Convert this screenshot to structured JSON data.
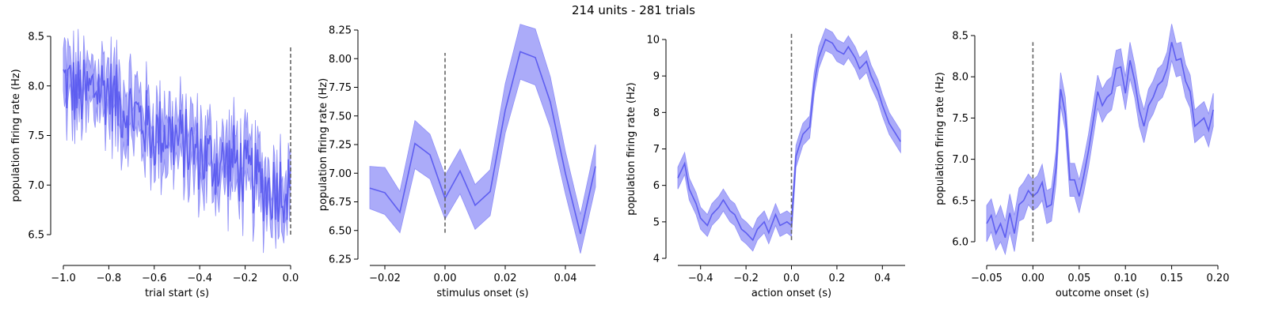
{
  "figure": {
    "suptitle": "214 units - 281 trials"
  },
  "colors": {
    "line": "#5555ee",
    "band": "#8f8ff7",
    "marker": "#666666",
    "axis": "#000000"
  },
  "chart_data": [
    {
      "type": "line",
      "xlabel": "trial start (s)",
      "ylabel": "population firing rate (Hz)",
      "xlim": [
        -1.0,
        0.0
      ],
      "ylim": [
        6.5,
        8.5
      ],
      "xticks": [
        -1.0,
        -0.8,
        -0.6,
        -0.4,
        -0.2,
        0.0
      ],
      "xtick_labels": [
        "−1.0",
        "−0.8",
        "−0.6",
        "−0.4",
        "−0.2",
        "0.0"
      ],
      "yticks": [
        6.5,
        7.0,
        7.5,
        8.0,
        8.5
      ],
      "ytick_labels": [
        "6.5",
        "7.0",
        "7.5",
        "8.0",
        "8.5"
      ],
      "event_line": {
        "x": 0.0,
        "y": [
          6.5,
          8.4
        ]
      },
      "noisy": true,
      "x": [
        -1.0,
        -0.95,
        -0.9,
        -0.85,
        -0.8,
        -0.75,
        -0.7,
        -0.65,
        -0.6,
        -0.55,
        -0.5,
        -0.45,
        -0.4,
        -0.35,
        -0.3,
        -0.25,
        -0.2,
        -0.15,
        -0.1,
        -0.05,
        0.0
      ],
      "y": [
        8.05,
        7.95,
        7.9,
        8.0,
        7.95,
        7.8,
        7.75,
        7.65,
        7.5,
        7.55,
        7.45,
        7.4,
        7.3,
        7.25,
        7.2,
        7.25,
        7.1,
        7.05,
        6.95,
        7.0,
        6.95
      ],
      "ci_half_width": [
        0.25,
        0.25,
        0.25,
        0.25,
        0.25,
        0.25,
        0.25,
        0.25,
        0.25,
        0.25,
        0.25,
        0.25,
        0.25,
        0.25,
        0.25,
        0.25,
        0.25,
        0.25,
        0.25,
        0.25,
        0.25
      ]
    },
    {
      "type": "line",
      "xlabel": "stimulus onset (s)",
      "ylabel": "population firing rate (Hz)",
      "xlim": [
        -0.025,
        0.05
      ],
      "ylim": [
        6.25,
        8.25
      ],
      "xticks": [
        -0.02,
        0.0,
        0.02,
        0.04
      ],
      "xtick_labels": [
        "−0.02",
        "0.00",
        "0.02",
        "0.04"
      ],
      "yticks": [
        6.25,
        6.5,
        6.75,
        7.0,
        7.25,
        7.5,
        7.75,
        8.0,
        8.25
      ],
      "ytick_labels": [
        "6.25",
        "6.50",
        "6.75",
        "7.00",
        "7.25",
        "7.50",
        "7.75",
        "8.00",
        "8.25"
      ],
      "event_line": {
        "x": 0.0,
        "y": [
          6.48,
          8.05
        ]
      },
      "noisy": false,
      "x": [
        -0.025,
        -0.02,
        -0.015,
        -0.01,
        -0.005,
        0.0,
        0.005,
        0.01,
        0.015,
        0.02,
        0.025,
        0.03,
        0.035,
        0.04,
        0.045,
        0.05
      ],
      "y": [
        6.87,
        6.83,
        6.66,
        7.26,
        7.16,
        6.78,
        7.02,
        6.72,
        6.84,
        7.55,
        8.06,
        8.01,
        7.62,
        7.0,
        6.47,
        7.06
      ],
      "lower": [
        6.69,
        6.64,
        6.48,
        7.04,
        6.95,
        6.6,
        6.82,
        6.51,
        6.63,
        7.35,
        7.82,
        7.77,
        7.4,
        6.82,
        6.3,
        6.88
      ],
      "upper": [
        7.06,
        7.05,
        6.84,
        7.46,
        7.34,
        6.98,
        7.21,
        6.9,
        7.03,
        7.78,
        8.3,
        8.26,
        7.84,
        7.19,
        6.64,
        7.25
      ]
    },
    {
      "type": "line",
      "xlabel": "action onset (s)",
      "ylabel": "population firing rate (Hz)",
      "xlim": [
        -0.5,
        0.5
      ],
      "ylim": [
        4,
        10
      ],
      "xticks": [
        -0.4,
        -0.2,
        0.0,
        0.2,
        0.4
      ],
      "xtick_labels": [
        "−0.4",
        "−0.2",
        "0.0",
        "0.2",
        "0.4"
      ],
      "yticks": [
        4,
        5,
        6,
        7,
        8,
        9,
        10
      ],
      "ytick_labels": [
        "4",
        "5",
        "6",
        "7",
        "8",
        "9",
        "10"
      ],
      "event_line": {
        "x": 0.0,
        "y": [
          4.5,
          10.2
        ]
      },
      "noisy": false,
      "x": [
        -0.5,
        -0.47,
        -0.45,
        -0.42,
        -0.4,
        -0.37,
        -0.35,
        -0.32,
        -0.3,
        -0.27,
        -0.25,
        -0.22,
        -0.2,
        -0.17,
        -0.15,
        -0.12,
        -0.1,
        -0.07,
        -0.05,
        -0.02,
        0.0,
        0.02,
        0.05,
        0.08,
        0.1,
        0.12,
        0.15,
        0.18,
        0.2,
        0.23,
        0.25,
        0.28,
        0.3,
        0.33,
        0.35,
        0.38,
        0.4,
        0.43,
        0.45,
        0.48
      ],
      "y": [
        6.2,
        6.6,
        5.9,
        5.5,
        5.1,
        4.9,
        5.2,
        5.4,
        5.6,
        5.3,
        5.2,
        4.8,
        4.7,
        4.5,
        4.8,
        5.0,
        4.7,
        5.2,
        4.9,
        5.0,
        4.9,
        6.8,
        7.4,
        7.6,
        8.8,
        9.5,
        10.0,
        9.9,
        9.7,
        9.6,
        9.8,
        9.5,
        9.2,
        9.4,
        9.0,
        8.6,
        8.2,
        7.7,
        7.5,
        7.2
      ],
      "lower": [
        5.9,
        6.3,
        5.6,
        5.2,
        4.8,
        4.6,
        4.9,
        5.1,
        5.3,
        5.0,
        4.9,
        4.5,
        4.4,
        4.2,
        4.5,
        4.7,
        4.4,
        4.9,
        4.6,
        4.7,
        4.6,
        6.5,
        7.1,
        7.3,
        8.5,
        9.2,
        9.7,
        9.6,
        9.4,
        9.3,
        9.5,
        9.2,
        8.9,
        9.1,
        8.7,
        8.3,
        7.9,
        7.4,
        7.2,
        6.9
      ],
      "upper": [
        6.5,
        6.9,
        6.2,
        5.8,
        5.4,
        5.2,
        5.5,
        5.7,
        5.9,
        5.6,
        5.5,
        5.1,
        5.0,
        4.8,
        5.1,
        5.3,
        5.0,
        5.5,
        5.2,
        5.3,
        5.2,
        7.1,
        7.7,
        7.9,
        9.1,
        9.8,
        10.3,
        10.2,
        10.0,
        9.9,
        10.1,
        9.8,
        9.5,
        9.7,
        9.3,
        8.9,
        8.5,
        8.0,
        7.8,
        7.5
      ]
    },
    {
      "type": "line",
      "xlabel": "outcome onset (s)",
      "ylabel": "population firing rate (Hz)",
      "xlim": [
        -0.05,
        0.2
      ],
      "ylim": [
        6.0,
        8.5
      ],
      "xticks": [
        -0.05,
        0.0,
        0.05,
        0.1,
        0.15,
        0.2
      ],
      "xtick_labels": [
        "−0.05",
        "0.00",
        "0.05",
        "0.10",
        "0.15",
        "0.20"
      ],
      "yticks": [
        6.0,
        6.5,
        7.0,
        7.5,
        8.0,
        8.5
      ],
      "ytick_labels": [
        "6.0",
        "6.5",
        "7.0",
        "7.5",
        "8.0",
        "8.5"
      ],
      "event_line": {
        "x": 0.0,
        "y": [
          6.0,
          8.42
        ]
      },
      "noisy": false,
      "x": [
        -0.05,
        -0.045,
        -0.04,
        -0.035,
        -0.03,
        -0.025,
        -0.02,
        -0.015,
        -0.01,
        -0.005,
        0.0,
        0.005,
        0.01,
        0.015,
        0.02,
        0.025,
        0.03,
        0.035,
        0.04,
        0.045,
        0.05,
        0.055,
        0.06,
        0.065,
        0.07,
        0.075,
        0.08,
        0.085,
        0.09,
        0.095,
        0.1,
        0.105,
        0.11,
        0.115,
        0.12,
        0.125,
        0.13,
        0.135,
        0.14,
        0.145,
        0.15,
        0.155,
        0.16,
        0.165,
        0.17,
        0.175,
        0.18,
        0.185,
        0.19,
        0.195
      ],
      "y": [
        6.22,
        6.32,
        6.1,
        6.22,
        6.05,
        6.35,
        6.1,
        6.45,
        6.5,
        6.62,
        6.55,
        6.6,
        6.72,
        6.42,
        6.45,
        6.9,
        7.85,
        7.55,
        6.75,
        6.75,
        6.55,
        6.8,
        7.1,
        7.45,
        7.82,
        7.65,
        7.75,
        7.8,
        8.1,
        8.12,
        7.8,
        8.2,
        7.95,
        7.6,
        7.4,
        7.65,
        7.75,
        7.9,
        7.95,
        8.1,
        8.42,
        8.2,
        8.22,
        7.95,
        7.82,
        7.4,
        7.45,
        7.5,
        7.35,
        7.6
      ],
      "lower": [
        6.0,
        6.12,
        5.9,
        6.0,
        5.85,
        6.12,
        5.88,
        6.25,
        6.28,
        6.45,
        6.38,
        6.42,
        6.5,
        6.22,
        6.25,
        6.7,
        7.65,
        7.35,
        6.55,
        6.55,
        6.35,
        6.6,
        6.9,
        7.25,
        7.62,
        7.45,
        7.55,
        7.6,
        7.88,
        7.9,
        7.6,
        7.98,
        7.75,
        7.4,
        7.2,
        7.45,
        7.55,
        7.7,
        7.75,
        7.9,
        8.2,
        8.0,
        8.02,
        7.75,
        7.62,
        7.2,
        7.25,
        7.3,
        7.15,
        7.4
      ],
      "upper": [
        6.44,
        6.52,
        6.3,
        6.44,
        6.25,
        6.58,
        6.32,
        6.65,
        6.72,
        6.82,
        6.75,
        6.8,
        6.94,
        6.62,
        6.65,
        7.1,
        8.05,
        7.75,
        6.95,
        6.95,
        6.75,
        7.0,
        7.3,
        7.65,
        8.02,
        7.85,
        7.95,
        8.0,
        8.32,
        8.34,
        8.0,
        8.42,
        8.15,
        7.8,
        7.6,
        7.85,
        7.95,
        8.1,
        8.15,
        8.3,
        8.64,
        8.4,
        8.42,
        8.15,
        8.02,
        7.6,
        7.65,
        7.7,
        7.55,
        7.8
      ]
    }
  ]
}
